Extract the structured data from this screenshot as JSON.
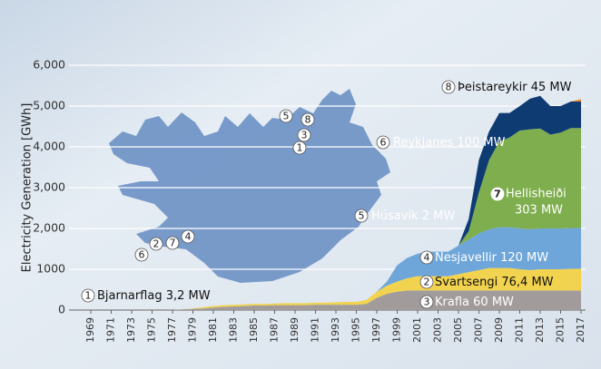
{
  "chart_data": {
    "type": "stacked_area",
    "y_label": "Electricity Generation [GWh]",
    "x": [
      1969,
      1970,
      1971,
      1972,
      1973,
      1974,
      1975,
      1976,
      1977,
      1978,
      1979,
      1980,
      1981,
      1982,
      1983,
      1984,
      1985,
      1986,
      1987,
      1988,
      1989,
      1990,
      1991,
      1992,
      1993,
      1994,
      1995,
      1996,
      1997,
      1998,
      1999,
      2000,
      2001,
      2002,
      2003,
      2004,
      2005,
      2006,
      2007,
      2008,
      2009,
      2010,
      2011,
      2012,
      2013,
      2014,
      2015,
      2016,
      2017
    ],
    "xlim": [
      1969,
      2017
    ],
    "xticks": [
      1969,
      1971,
      1973,
      1975,
      1977,
      1979,
      1981,
      1983,
      1985,
      1987,
      1989,
      1991,
      1993,
      1995,
      1997,
      1999,
      2001,
      2003,
      2005,
      2007,
      2009,
      2011,
      2013,
      2015,
      2017
    ],
    "ylim": [
      0,
      6000
    ],
    "yticks": [
      0,
      {
        "value": 1000,
        "label": "1000"
      },
      {
        "value": 2000,
        "label": "2,000"
      },
      {
        "value": 3000,
        "label": "3,000"
      },
      {
        "value": 4000,
        "label": "4,000"
      },
      {
        "value": 5000,
        "label": "5,000"
      },
      {
        "value": 6000,
        "label": "6,000"
      }
    ],
    "grid": true,
    "series": [
      {
        "number": "3",
        "name": "Krafla",
        "capacity": "60 MW",
        "color": "#a19c9b",
        "values": [
          0,
          0,
          0,
          0,
          0,
          0,
          0,
          0,
          0,
          20,
          30,
          40,
          60,
          80,
          90,
          100,
          110,
          110,
          120,
          120,
          120,
          120,
          130,
          130,
          130,
          130,
          130,
          150,
          300,
          400,
          450,
          480,
          480,
          480,
          480,
          480,
          480,
          480,
          480,
          480,
          480,
          480,
          480,
          480,
          480,
          480,
          480,
          480,
          480
        ]
      },
      {
        "number": "2",
        "name": "Svartsengi",
        "capacity": "76,4 MW",
        "color": "#f2d34f",
        "values": [
          0,
          0,
          0,
          0,
          0,
          0,
          0,
          0,
          0,
          0,
          10,
          30,
          40,
          40,
          40,
          40,
          40,
          40,
          40,
          50,
          50,
          50,
          50,
          50,
          60,
          70,
          70,
          100,
          150,
          200,
          250,
          300,
          350,
          350,
          350,
          350,
          400,
          450,
          500,
          550,
          550,
          550,
          520,
          500,
          520,
          520,
          520,
          530,
          530
        ]
      },
      {
        "number": "4",
        "name": "Nesjavellir",
        "capacity": "120 MW",
        "color": "#6fa6d9",
        "values": [
          0,
          0,
          0,
          0,
          0,
          0,
          0,
          0,
          0,
          0,
          0,
          0,
          0,
          0,
          0,
          0,
          0,
          0,
          0,
          0,
          0,
          0,
          0,
          0,
          0,
          0,
          0,
          0,
          0,
          100,
          400,
          500,
          550,
          600,
          600,
          600,
          700,
          800,
          900,
          950,
          1000,
          1000,
          1000,
          1000,
          1000,
          1000,
          1000,
          1000,
          1000
        ]
      },
      {
        "number": "7",
        "name": "Hellisheiði",
        "capacity": "303 MW",
        "color": "#7fae4e",
        "values": [
          0,
          0,
          0,
          0,
          0,
          0,
          0,
          0,
          0,
          0,
          0,
          0,
          0,
          0,
          0,
          0,
          0,
          0,
          0,
          0,
          0,
          0,
          0,
          0,
          0,
          0,
          0,
          0,
          0,
          0,
          0,
          0,
          0,
          0,
          0,
          0,
          0,
          200,
          1000,
          1700,
          2100,
          2200,
          2400,
          2450,
          2450,
          2300,
          2350,
          2450,
          2450
        ]
      },
      {
        "number": "6",
        "name": "Reykjanes",
        "capacity": "100 MW",
        "color": "#0f3b73",
        "values": [
          0,
          0,
          0,
          0,
          0,
          0,
          0,
          0,
          0,
          0,
          0,
          0,
          0,
          0,
          0,
          0,
          0,
          0,
          0,
          0,
          0,
          0,
          0,
          0,
          0,
          0,
          0,
          0,
          0,
          0,
          0,
          0,
          0,
          0,
          0,
          0,
          0,
          300,
          800,
          700,
          700,
          600,
          600,
          750,
          800,
          700,
          650,
          650,
          650
        ]
      },
      {
        "number": "8",
        "name": "Þeistareykir",
        "capacity": "45 MW",
        "color": "#f08a2c",
        "values": [
          0,
          0,
          0,
          0,
          0,
          0,
          0,
          0,
          0,
          0,
          0,
          0,
          0,
          0,
          0,
          0,
          0,
          0,
          0,
          0,
          0,
          0,
          0,
          0,
          0,
          0,
          0,
          0,
          0,
          0,
          0,
          0,
          0,
          0,
          0,
          0,
          0,
          0,
          0,
          0,
          0,
          0,
          0,
          0,
          0,
          0,
          0,
          0,
          60
        ]
      }
    ],
    "annotations": [
      {
        "number": "1",
        "name": "Bjarnarflag",
        "capacity": "3,2 MW"
      },
      {
        "number": "5",
        "name": "Húsavík",
        "capacity": "2 MW"
      }
    ],
    "map_markers": [
      "5",
      "8",
      "3",
      "1",
      "2",
      "6",
      "7",
      "4"
    ]
  }
}
